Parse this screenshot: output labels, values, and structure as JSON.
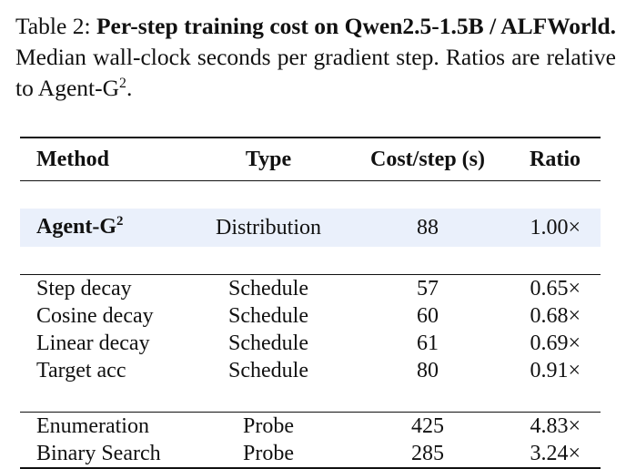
{
  "caption": {
    "label": "Table 2:",
    "title": "Per-step training cost on Qwen2.5-1.5B / ALFWorld.",
    "text": "Median wall-clock seconds per gradient step. Ratios are relative to Agent-G",
    "text_sup": "2",
    "text_end": "."
  },
  "table": {
    "headers": [
      "Method",
      "Type",
      "Cost/step (s)",
      "Ratio"
    ],
    "highlight_row": {
      "method": "Agent-G",
      "method_sup": "2",
      "type": "Distribution",
      "cost": "88",
      "ratio": "1.00×"
    },
    "schedule_rows": [
      {
        "method": "Step decay",
        "type": "Schedule",
        "cost": "57",
        "ratio": "0.65×"
      },
      {
        "method": "Cosine decay",
        "type": "Schedule",
        "cost": "60",
        "ratio": "0.68×"
      },
      {
        "method": "Linear decay",
        "type": "Schedule",
        "cost": "61",
        "ratio": "0.69×"
      },
      {
        "method": "Target acc",
        "type": "Schedule",
        "cost": "80",
        "ratio": "0.91×"
      }
    ],
    "probe_rows": [
      {
        "method": "Enumeration",
        "type": "Probe",
        "cost": "425",
        "ratio": "4.83×"
      },
      {
        "method": "Binary Search",
        "type": "Probe",
        "cost": "285",
        "ratio": "3.24×"
      }
    ]
  },
  "colors": {
    "highlight": "#eaf0fb",
    "text": "#111111"
  }
}
